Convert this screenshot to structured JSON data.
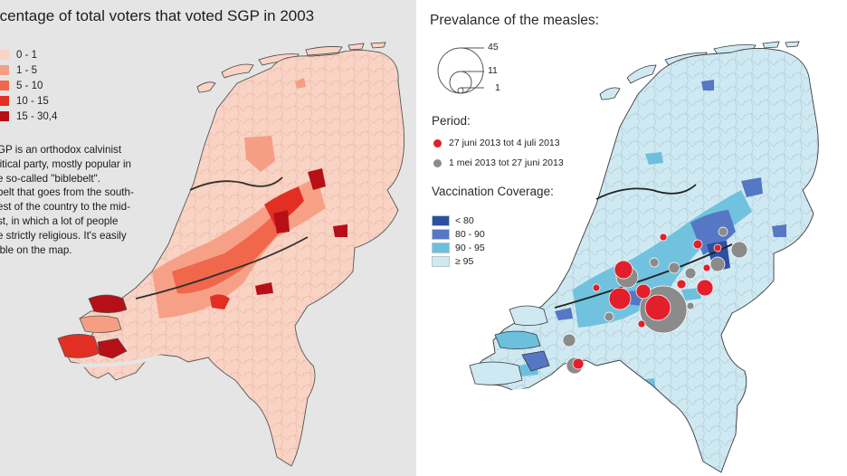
{
  "left_map": {
    "title": "rcentage of total voters that voted SGP in 2003",
    "legend": [
      {
        "label": "0 - 1",
        "color": "#f9d3c4"
      },
      {
        "label": "1 - 5",
        "color": "#f59e84"
      },
      {
        "label": "5 - 10",
        "color": "#f0674c"
      },
      {
        "label": "10 - 15",
        "color": "#e32f23"
      },
      {
        "label": "15 - 30,4",
        "color": "#b70f17"
      }
    ],
    "note_lines": [
      "GP is an orthodox calvinist",
      "litical party, mostly popular in",
      "e so-called \"biblebelt\".",
      "belt that goes from the south-",
      "est of the country to the mid-",
      "st, in which a lot of people",
      "e strictly religious. It's easily",
      "ible on the map."
    ]
  },
  "right_map": {
    "title": "Prevalance of the measles:",
    "size_legend": [
      {
        "label": "45"
      },
      {
        "label": "11"
      },
      {
        "label": "1"
      }
    ],
    "period_title": "Period:",
    "periods": [
      {
        "label": "27 juni 2013 tot 4 juli 2013",
        "color": "#e2202b"
      },
      {
        "label": "1 mei 2013 tot 27 juni 2013",
        "color": "#8b8b8b"
      }
    ],
    "vaccination_title": "Vaccination Coverage:",
    "vaccination": [
      {
        "label": "< 80",
        "color": "#2c4fa3"
      },
      {
        "label": "80 - 90",
        "color": "#5577c4"
      },
      {
        "label": "90 - 95",
        "color": "#6cc0dc"
      },
      {
        "label": "≥ 95",
        "color": "#cfe9f2"
      }
    ]
  }
}
